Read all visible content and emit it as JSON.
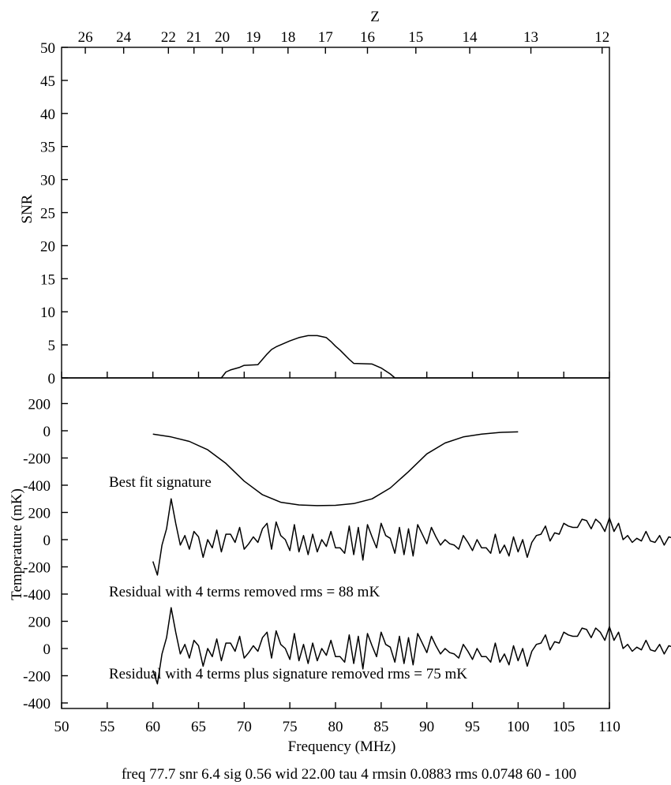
{
  "chart_data": {
    "type": "line",
    "top_axis": {
      "label": "Z",
      "ticks": [
        "26",
        "24",
        "22",
        "21",
        "20",
        "19",
        "18",
        "17",
        "16",
        "15",
        "14",
        "13",
        "12"
      ],
      "tick_freqs": [
        52.6,
        56.8,
        61.7,
        64.5,
        67.6,
        71.0,
        74.8,
        78.9,
        83.5,
        88.8,
        94.7,
        101.4,
        109.2
      ]
    },
    "xaxis": {
      "label": "Frequency (MHz)",
      "xlim": [
        50,
        110
      ],
      "ticks": [
        50,
        55,
        60,
        65,
        70,
        75,
        80,
        85,
        90,
        95,
        100,
        105,
        110
      ]
    },
    "snr_panel": {
      "ylabel": "SNR",
      "ylim": [
        0,
        50
      ],
      "ticks": [
        0,
        5,
        10,
        15,
        20,
        25,
        30,
        35,
        40,
        45,
        50
      ],
      "series": {
        "x": [
          50,
          67.5,
          68,
          68.5,
          69.5,
          70,
          71.5,
          72,
          72.5,
          73,
          73.5,
          74,
          75,
          76,
          77,
          78,
          79,
          79.5,
          80,
          80.5,
          81,
          81.5,
          82,
          84,
          85,
          86,
          86.5,
          110
        ],
        "values": [
          0,
          0,
          0.9,
          1.2,
          1.6,
          1.9,
          2.0,
          2.8,
          3.6,
          4.3,
          4.7,
          5.0,
          5.6,
          6.1,
          6.4,
          6.4,
          6.1,
          5.5,
          4.8,
          4.2,
          3.5,
          2.8,
          2.2,
          2.1,
          1.5,
          0.6,
          0,
          0
        ]
      }
    },
    "temp_panel": {
      "ylabel": "Temperature (mK)",
      "ticks": [
        "200",
        "0",
        "-200",
        "-400",
        "200",
        "0",
        "-200",
        "-400",
        "200",
        "0",
        "-200",
        "-400"
      ],
      "series": [
        {
          "name": "Best fit signature",
          "offset": 0,
          "x": [
            60,
            62,
            64,
            66,
            68,
            70,
            72,
            74,
            76,
            78,
            80,
            82,
            84,
            86,
            88,
            90,
            92,
            94,
            96,
            98,
            100
          ],
          "values": [
            -25,
            -45,
            -78,
            -140,
            -240,
            -370,
            -470,
            -525,
            -545,
            -550,
            -548,
            -535,
            -500,
            -420,
            -300,
            -170,
            -90,
            -45,
            -25,
            -12,
            -8
          ]
        },
        {
          "name": "Residual with 4 terms removed rms =  88 mK",
          "offset": -800,
          "x_start": 60,
          "x_step": 0.5,
          "values": [
            -160,
            -260,
            -40,
            80,
            300,
            120,
            -40,
            30,
            -70,
            60,
            20,
            -130,
            0,
            -60,
            70,
            -90,
            40,
            40,
            -20,
            90,
            -70,
            -30,
            20,
            -20,
            80,
            120,
            -70,
            130,
            30,
            0,
            -80,
            110,
            -90,
            30,
            -110,
            40,
            -90,
            0,
            -50,
            60,
            -60,
            -60,
            -100,
            100,
            -110,
            90,
            -150,
            110,
            20,
            -60,
            120,
            30,
            10,
            -100,
            90,
            -110,
            80,
            -120,
            110,
            40,
            -30,
            90,
            20,
            -40,
            0,
            -30,
            -40,
            -70,
            30,
            -20,
            -80,
            0,
            -60,
            -60,
            -100,
            40,
            -100,
            -40,
            -120,
            20,
            -90,
            0,
            -130,
            -20,
            30,
            40,
            100,
            -10,
            50,
            40,
            120,
            100,
            90,
            90,
            150,
            140,
            80,
            150,
            120,
            60,
            160,
            60,
            120,
            0,
            30,
            -20,
            10,
            -10,
            60,
            -10,
            -20,
            30,
            -40,
            20,
            10,
            -20,
            -100,
            -170,
            -290,
            -20
          ]
        },
        {
          "name": "Residual with 4 terms plus signature removed rms =  75 mK",
          "offset": -1600,
          "x_start": 60,
          "x_step": 0.5,
          "values": [
            -160,
            -260,
            -40,
            80,
            300,
            120,
            -40,
            30,
            -70,
            60,
            20,
            -130,
            0,
            -60,
            70,
            -90,
            40,
            40,
            -20,
            90,
            -70,
            -30,
            20,
            -20,
            80,
            120,
            -70,
            130,
            30,
            0,
            -80,
            110,
            -90,
            30,
            -110,
            40,
            -90,
            0,
            -50,
            60,
            -60,
            -60,
            -100,
            100,
            -110,
            90,
            -150,
            110,
            20,
            -60,
            120,
            30,
            10,
            -100,
            90,
            -110,
            80,
            -120,
            110,
            40,
            -30,
            90,
            20,
            -40,
            0,
            -30,
            -40,
            -70,
            30,
            -20,
            -80,
            0,
            -60,
            -60,
            -100,
            40,
            -100,
            -40,
            -120,
            20,
            -90,
            0,
            -130,
            -20,
            30,
            40,
            100,
            -10,
            50,
            40,
            120,
            100,
            90,
            90,
            150,
            140,
            80,
            150,
            120,
            60,
            160,
            60,
            120,
            0,
            30,
            -20,
            10,
            -10,
            60,
            -10,
            -20,
            30,
            -40,
            20,
            10,
            -20,
            -100,
            -170,
            -290,
            -20
          ]
        }
      ]
    },
    "footer": "freq 77.7 snr  6.4 sig 0.56 wid 22.00 tau  4 rmsin 0.0883 rms 0.0748 60 - 100"
  }
}
